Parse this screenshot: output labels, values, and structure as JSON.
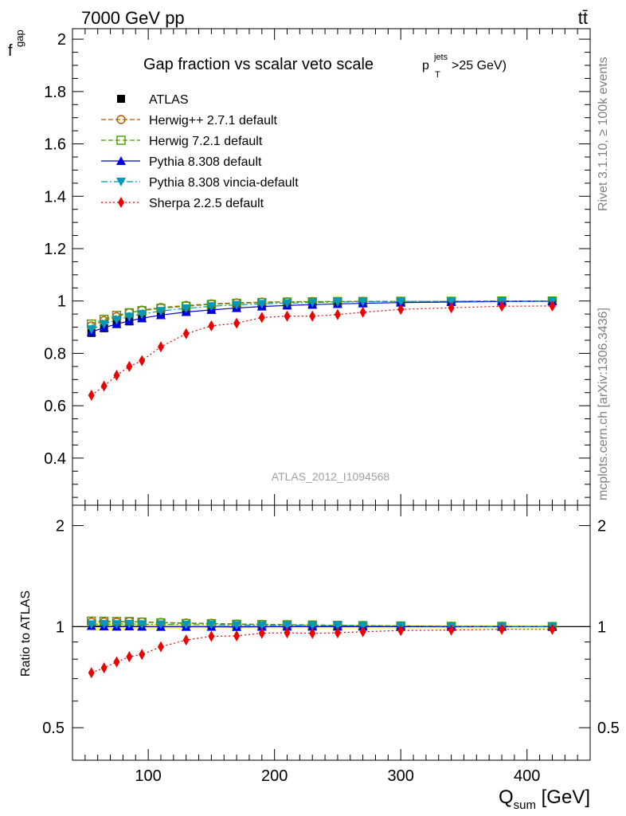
{
  "header": {
    "energy_label": "7000 GeV pp",
    "process_label": "tt̄"
  },
  "side_labels": {
    "rivet": "Rivet 3.1.10, ≥ 100k events",
    "mcplots": "mcplots.cern.ch [arXiv:1306.3436]"
  },
  "chart_data": [
    {
      "type": "line",
      "title": "Gap fraction vs scalar veto scale",
      "title_suffix": {
        "p": "p",
        "sup": "jets",
        "sub": "T",
        "rest": ">25 GeV)"
      },
      "ylabel": {
        "main": "f",
        "sub": "gap"
      },
      "xlim": [
        40,
        450
      ],
      "ylim": [
        0.22,
        2.04
      ],
      "yticks": [
        0.4,
        0.6,
        0.8,
        1,
        1.2,
        1.4,
        1.6,
        1.8,
        2
      ],
      "ytick_labels": [
        "0.4",
        "0.6",
        "0.8",
        "1",
        "1.2",
        "1.4",
        "1.6",
        "1.8",
        "2"
      ],
      "watermark": "ATLAS_2012_I1094568",
      "x": [
        55,
        65,
        75,
        85,
        95,
        110,
        130,
        150,
        170,
        190,
        210,
        230,
        250,
        270,
        300,
        340,
        380,
        420
      ],
      "series": [
        {
          "name": "ATLAS",
          "color": "#000000",
          "marker": "square",
          "dash": "none",
          "values": [
            0.878,
            0.896,
            0.912,
            0.922,
            0.934,
            0.947,
            0.959,
            0.967,
            0.975,
            0.98,
            0.983,
            0.986,
            0.989,
            0.991,
            0.994,
            0.997,
            0.998,
            0.999
          ]
        },
        {
          "name": "Herwig++ 2.7.1 default",
          "color": "#b35900",
          "marker": "circle-open",
          "dash": "6,3",
          "values": [
            0.905,
            0.925,
            0.94,
            0.955,
            0.965,
            0.975,
            0.983,
            0.989,
            0.993,
            0.996,
            0.997,
            0.998,
            0.998,
            0.999,
            0.999,
            0.999,
            1.0,
            1.0
          ]
        },
        {
          "name": "Herwig 7.2.1 default",
          "color": "#4d9900",
          "marker": "square-open",
          "dash": "6,3",
          "values": [
            0.912,
            0.93,
            0.945,
            0.955,
            0.963,
            0.972,
            0.98,
            0.987,
            0.991,
            0.994,
            0.996,
            0.997,
            0.998,
            0.998,
            0.999,
            0.999,
            1.0,
            1.0
          ]
        },
        {
          "name": "Pythia 8.308 default",
          "color": "#0000dd",
          "marker": "triangle-up",
          "dash": "none",
          "values": [
            0.882,
            0.898,
            0.912,
            0.924,
            0.934,
            0.946,
            0.958,
            0.966,
            0.973,
            0.979,
            0.983,
            0.986,
            0.989,
            0.991,
            0.994,
            0.996,
            0.998,
            0.999
          ]
        },
        {
          "name": "Pythia 8.308 vincia-default",
          "color": "#0099bb",
          "marker": "triangle-down",
          "dash": "8,3,2,3",
          "values": [
            0.892,
            0.912,
            0.928,
            0.94,
            0.95,
            0.962,
            0.972,
            0.98,
            0.985,
            0.989,
            0.992,
            0.994,
            0.996,
            0.997,
            0.998,
            0.999,
            0.999,
            1.0
          ]
        },
        {
          "name": "Sherpa 2.2.5 default",
          "color": "#ee0000",
          "marker": "diamond",
          "dash": "2,3",
          "values": [
            0.64,
            0.675,
            0.716,
            0.75,
            0.772,
            0.825,
            0.875,
            0.905,
            0.915,
            0.937,
            0.942,
            0.942,
            0.948,
            0.957,
            0.968,
            0.974,
            0.98,
            0.981
          ]
        }
      ]
    },
    {
      "type": "line",
      "title": "",
      "ylabel": "Ratio to ATLAS",
      "xlabel": {
        "main": "Q",
        "sub": "sum",
        "rest": " [GeV]"
      },
      "xlim": [
        40,
        450
      ],
      "ylim": [
        0.4,
        2.3
      ],
      "log_y": true,
      "yticks": [
        0.5,
        1,
        2
      ],
      "ytick_labels": [
        "0.5",
        "1",
        "2"
      ],
      "xticks": [
        100,
        200,
        300,
        400
      ],
      "xtick_labels": [
        "100",
        "200",
        "300",
        "400"
      ],
      "reference_line": 1
    }
  ]
}
